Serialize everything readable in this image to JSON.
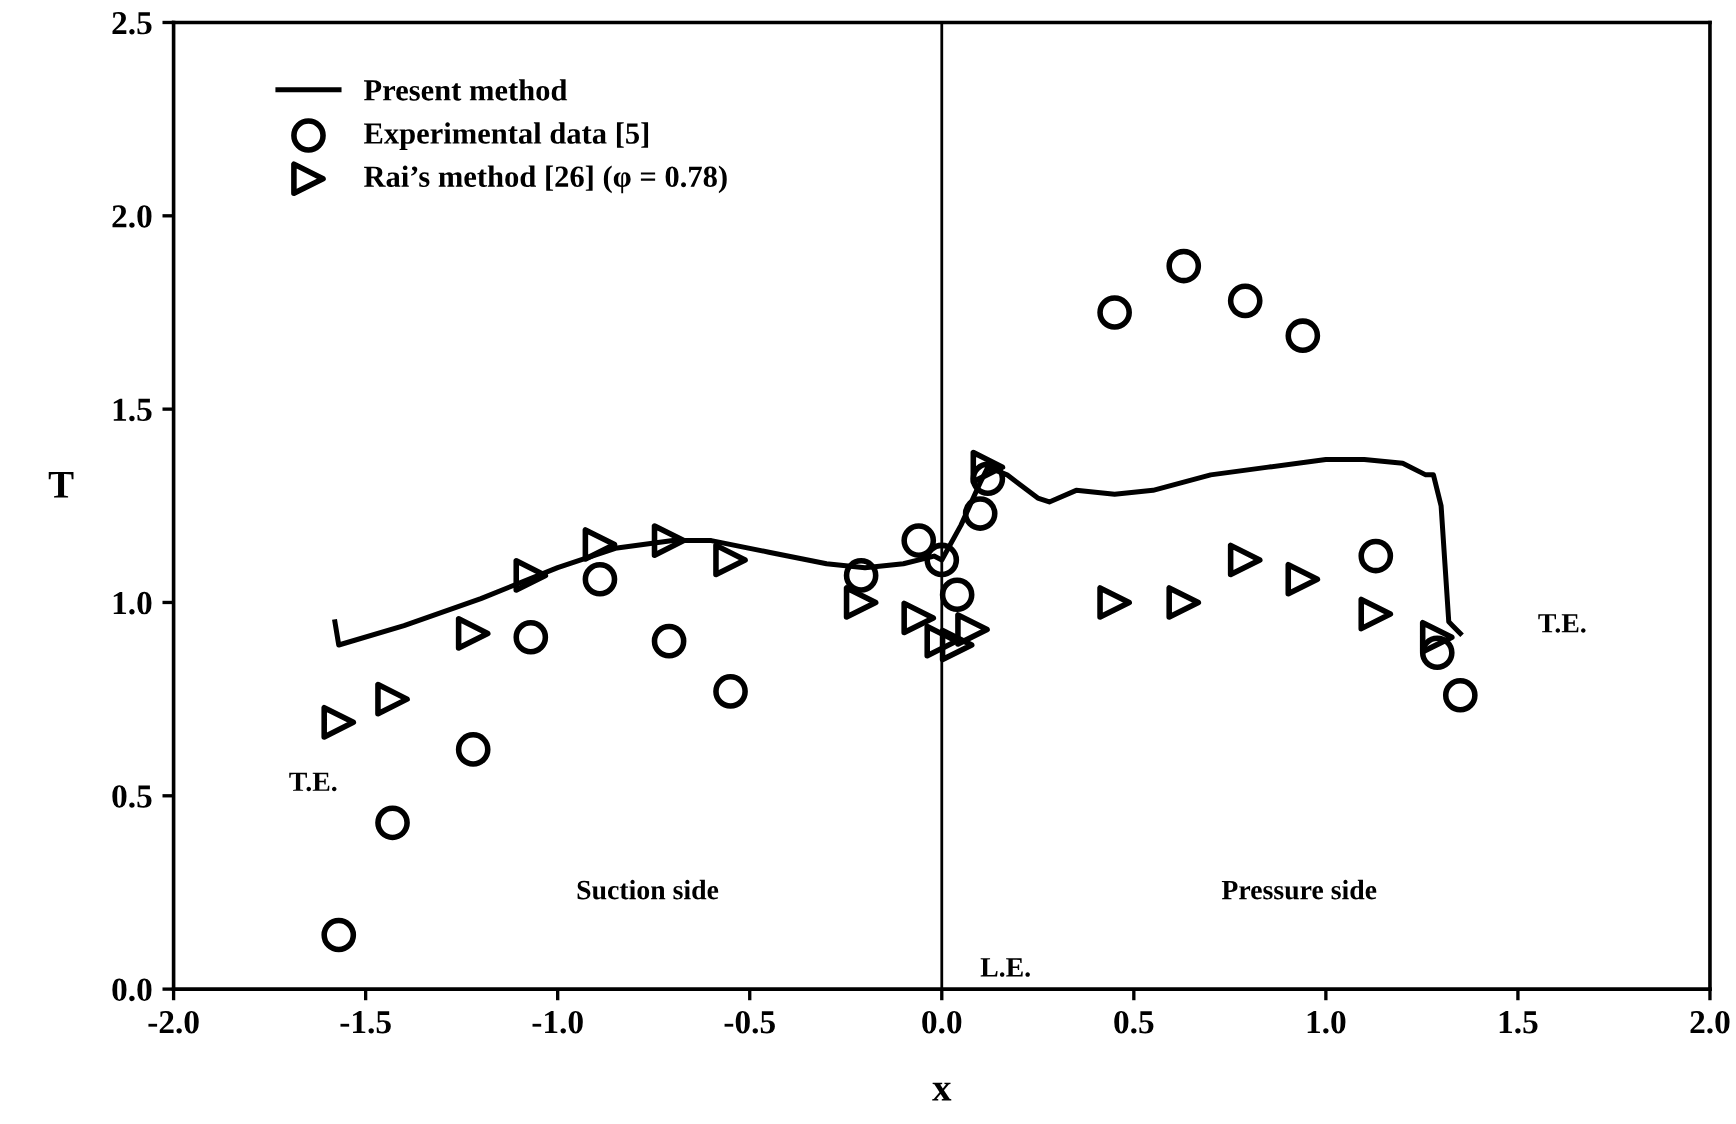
{
  "chart_data": {
    "type": "scatter",
    "xlabel": "x",
    "ylabel": "T",
    "xlim": [
      -2.0,
      2.0
    ],
    "ylim": [
      0.0,
      2.5
    ],
    "xticks": [
      {
        "value": -2.0,
        "label": "-2.0"
      },
      {
        "value": -1.5,
        "label": "-1.5"
      },
      {
        "value": -1.0,
        "label": "-1.0"
      },
      {
        "value": -0.5,
        "label": "-0.5"
      },
      {
        "value": 0.0,
        "label": "0.0"
      },
      {
        "value": 0.5,
        "label": "0.5"
      },
      {
        "value": 1.0,
        "label": "1.0"
      },
      {
        "value": 1.5,
        "label": "1.5"
      },
      {
        "value": 2.0,
        "label": "2.0"
      }
    ],
    "yticks": [
      {
        "value": 0.0,
        "label": "0.0"
      },
      {
        "value": 0.5,
        "label": "0.5"
      },
      {
        "value": 1.0,
        "label": "1.0"
      },
      {
        "value": 1.5,
        "label": "1.5"
      },
      {
        "value": 2.0,
        "label": "2.0"
      },
      {
        "value": 2.5,
        "label": "2.5"
      }
    ],
    "grid": false,
    "legend": "top left",
    "series": [
      {
        "name": "Present method",
        "type": "line",
        "color": "#000000",
        "marker": "none",
        "line_style": "solid",
        "x": [
          -1.58,
          -1.57,
          -1.4,
          -1.2,
          -1.0,
          -0.85,
          -0.7,
          -0.6,
          -0.45,
          -0.3,
          -0.2,
          -0.1,
          -0.02,
          0.0,
          0.05,
          0.1,
          0.12,
          0.17,
          0.25,
          0.28,
          0.35,
          0.45,
          0.55,
          0.7,
          0.85,
          1.0,
          1.1,
          1.2,
          1.26,
          1.28,
          1.3,
          1.31,
          1.32,
          1.33,
          1.35
        ],
        "values": [
          0.95,
          0.89,
          0.94,
          1.01,
          1.09,
          1.14,
          1.16,
          1.16,
          1.13,
          1.1,
          1.09,
          1.1,
          1.12,
          1.11,
          1.2,
          1.31,
          1.35,
          1.33,
          1.27,
          1.26,
          1.29,
          1.28,
          1.29,
          1.33,
          1.35,
          1.37,
          1.37,
          1.36,
          1.33,
          1.33,
          1.25,
          1.1,
          0.95,
          0.94,
          0.92
        ]
      },
      {
        "name": "Experimental data [5]",
        "color": "#000000",
        "marker": "circle",
        "x": [
          -1.57,
          -1.43,
          -1.22,
          -1.07,
          -0.89,
          -0.71,
          -0.55,
          -0.21,
          -0.06,
          0.0,
          0.04,
          0.1,
          0.12,
          0.45,
          0.63,
          0.79,
          0.94,
          1.13,
          1.29,
          1.35
        ],
        "values": [
          0.14,
          0.43,
          0.62,
          0.91,
          1.06,
          0.9,
          0.77,
          1.07,
          1.16,
          1.11,
          1.02,
          1.23,
          1.32,
          1.75,
          1.87,
          1.78,
          1.69,
          1.12,
          0.87,
          0.76
        ]
      },
      {
        "name": "Rai’s method [26] (φ = 0.78)",
        "color": "#000000",
        "marker": "triangle",
        "x": [
          -1.57,
          -1.43,
          -1.22,
          -1.07,
          -0.89,
          -0.71,
          -0.55,
          -0.21,
          -0.06,
          0.0,
          0.04,
          0.08,
          0.12,
          0.45,
          0.63,
          0.79,
          0.94,
          1.13,
          1.29
        ],
        "values": [
          0.69,
          0.75,
          0.92,
          1.07,
          1.15,
          1.16,
          1.11,
          1.0,
          0.96,
          0.9,
          0.89,
          0.93,
          1.35,
          1.0,
          1.0,
          1.11,
          1.06,
          0.97,
          0.91
        ]
      }
    ],
    "ref_lines": [
      {
        "axis": "x",
        "value": 0.0,
        "color": "#000000",
        "line_style": "solid"
      }
    ],
    "annotations": [
      "T.E.",
      "T.E.",
      "Suction side",
      "Pressure side",
      "L.E."
    ]
  }
}
